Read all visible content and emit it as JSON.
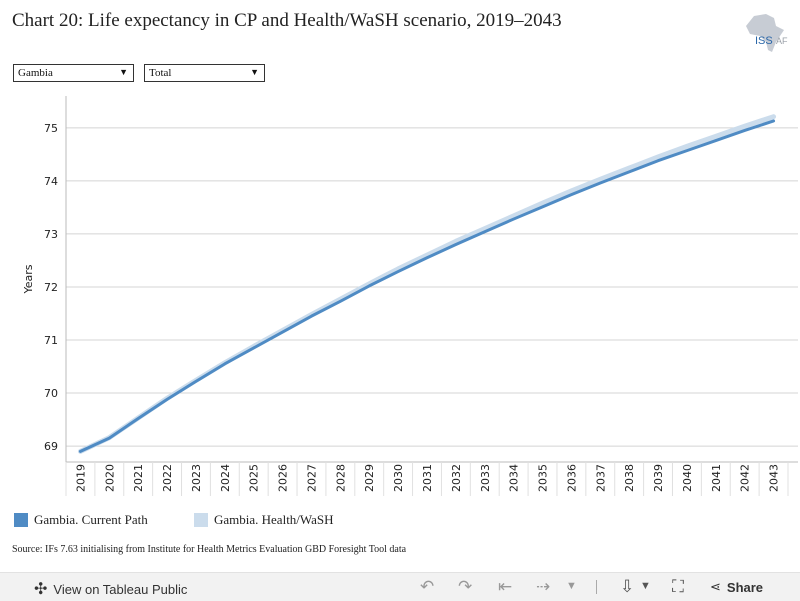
{
  "title": "Chart 20: Life expectancy in CP and Health/WaSH scenario, 2019–2043",
  "logo_text": "ISS",
  "logo_sub": "AF",
  "filters": [
    {
      "value": "Gambia"
    },
    {
      "value": "Total"
    }
  ],
  "colors": {
    "current_path": "#4f8bc4",
    "health_wash": "#cbdcec"
  },
  "chart_data": {
    "type": "line",
    "ylabel": "Years",
    "xlabel": "",
    "ylim": [
      68.7,
      75.6
    ],
    "yticks": [
      69,
      70,
      71,
      72,
      73,
      74,
      75
    ],
    "x": [
      "2019",
      "2020",
      "2021",
      "2022",
      "2023",
      "2024",
      "2025",
      "2026",
      "2027",
      "2028",
      "2029",
      "2030",
      "2031",
      "2032",
      "2033",
      "2034",
      "2035",
      "2036",
      "2037",
      "2038",
      "2039",
      "2040",
      "2041",
      "2042",
      "2043"
    ],
    "series": [
      {
        "name": "Gambia. Current Path",
        "values": [
          68.9,
          69.15,
          69.52,
          69.88,
          70.22,
          70.55,
          70.85,
          71.15,
          71.45,
          71.73,
          72.02,
          72.29,
          72.55,
          72.8,
          73.04,
          73.28,
          73.51,
          73.74,
          73.96,
          74.17,
          74.38,
          74.57,
          74.76,
          74.95,
          75.13
        ]
      },
      {
        "name": "Gambia. Health/WaSH",
        "values": [
          68.9,
          69.16,
          69.53,
          69.9,
          70.24,
          70.57,
          70.88,
          71.18,
          71.48,
          71.77,
          72.06,
          72.34,
          72.6,
          72.86,
          73.1,
          73.34,
          73.58,
          73.81,
          74.03,
          74.24,
          74.45,
          74.65,
          74.84,
          75.03,
          75.21
        ]
      }
    ],
    "grid": true,
    "legend_position": "bottom-left"
  },
  "legend": [
    {
      "label": "Gambia. Current Path"
    },
    {
      "label": "Gambia. Health/WaSH"
    }
  ],
  "source": "Source: IFs 7.63 initialising from Institute for Health Metrics Evaluation GBD Foresight Tool data",
  "footer": {
    "view_label": "View on Tableau Public",
    "share_label": "Share"
  }
}
